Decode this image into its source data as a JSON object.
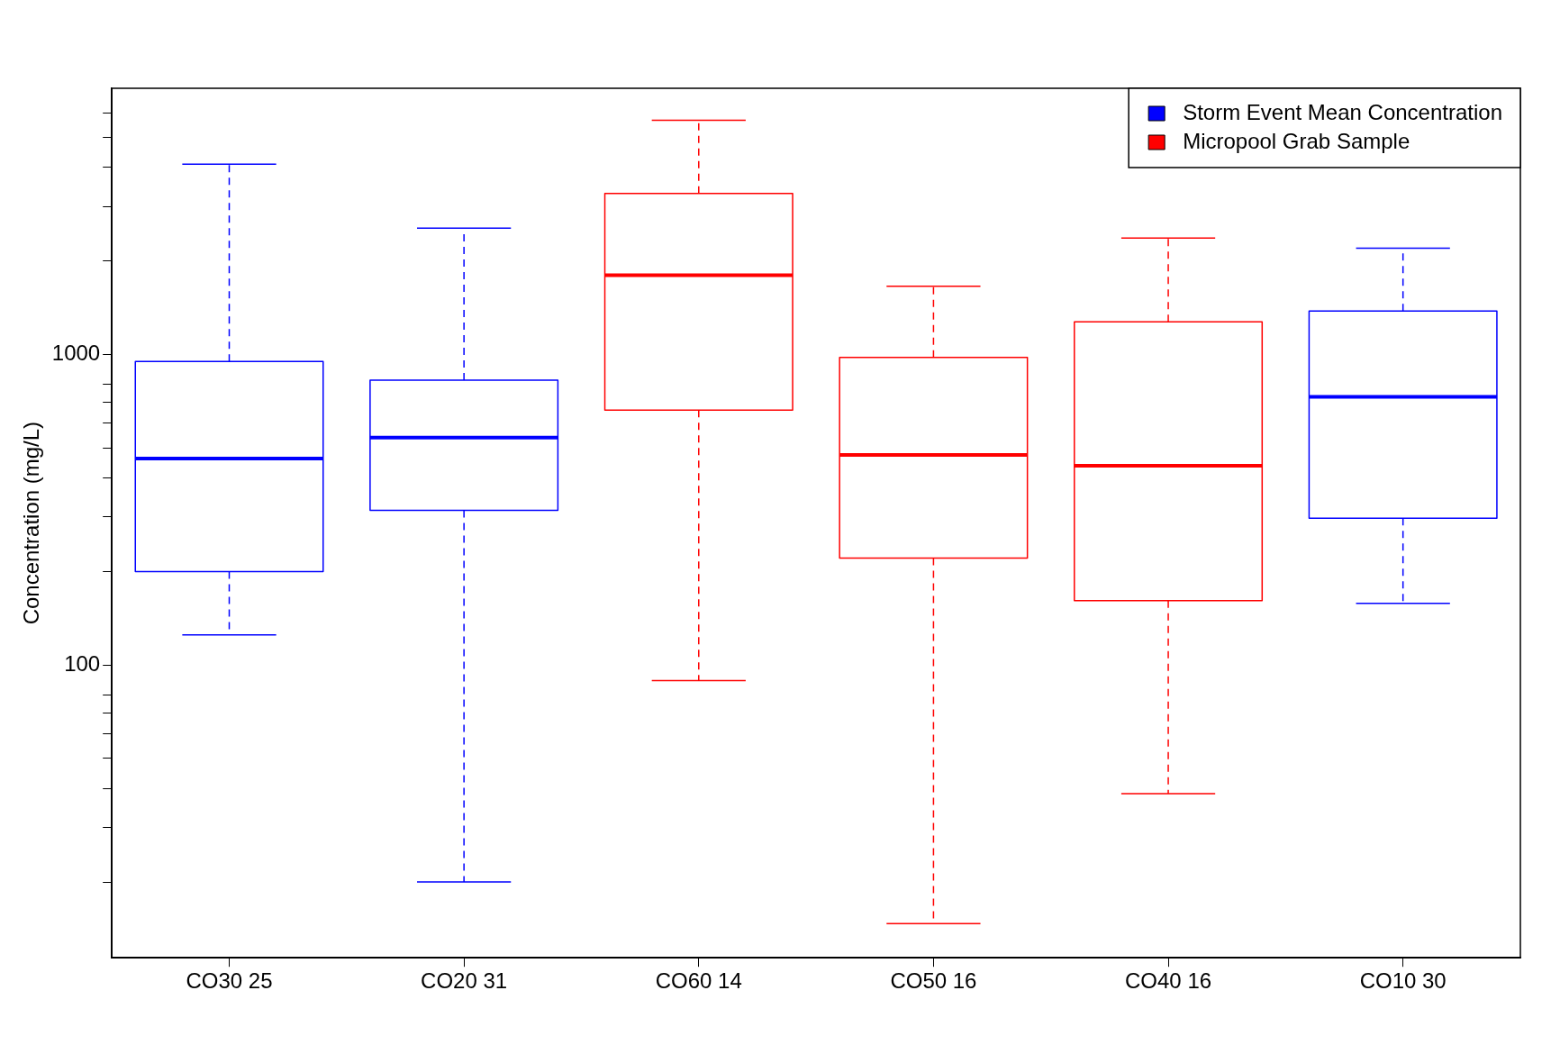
{
  "chart_data": {
    "type": "box",
    "ylabel": "Concentration (mg/L)",
    "categories": [
      "CO30 25",
      "CO20 31",
      "CO60 14",
      "CO50 16",
      "CO40 16",
      "CO10 30"
    ],
    "log": true,
    "ylim": [
      11.4,
      7200
    ],
    "yticks": [
      {
        "value": 20,
        "label": null
      },
      {
        "value": 30,
        "label": null
      },
      {
        "value": 40,
        "label": null
      },
      {
        "value": 50,
        "label": null
      },
      {
        "value": 60,
        "label": null
      },
      {
        "value": 70,
        "label": null
      },
      {
        "value": 80,
        "label": null
      },
      100,
      {
        "value": 200,
        "label": null
      },
      {
        "value": 300,
        "label": null
      },
      {
        "value": 400,
        "label": null
      },
      {
        "value": 500,
        "label": null
      },
      {
        "value": 600,
        "label": null
      },
      {
        "value": 700,
        "label": null
      },
      {
        "value": 800,
        "label": null
      },
      1000,
      {
        "value": 2000,
        "label": null
      },
      {
        "value": 3000,
        "label": null
      },
      {
        "value": 4000,
        "label": null
      },
      {
        "value": 5000,
        "label": null
      },
      {
        "value": 6000,
        "label": null
      }
    ],
    "legend": "top right",
    "line_style": "dashed",
    "series": [
      {
        "name": "Storm Event Mean Concentration",
        "color": "#0000ff",
        "boxes": [
          {
            "low": 125,
            "q1": 200,
            "median": 462,
            "q3": 950,
            "high": 4100
          },
          {
            "low": 20,
            "q1": 315,
            "median": 540,
            "q3": 826,
            "high": 2550
          },
          null,
          null,
          null,
          {
            "low": 158,
            "q1": 297,
            "median": 730,
            "q3": 1380,
            "high": 2200
          }
        ]
      },
      {
        "name": "Micropool Grab Sample",
        "color": "#ff0000",
        "boxes": [
          null,
          null,
          {
            "low": 89,
            "q1": 662,
            "median": 1800,
            "q3": 3300,
            "high": 5680
          },
          {
            "low": 14.7,
            "q1": 221,
            "median": 475,
            "q3": 978,
            "high": 1660
          },
          {
            "low": 38.5,
            "q1": 161,
            "median": 438,
            "q3": 1274,
            "high": 2370
          },
          null
        ]
      }
    ]
  }
}
